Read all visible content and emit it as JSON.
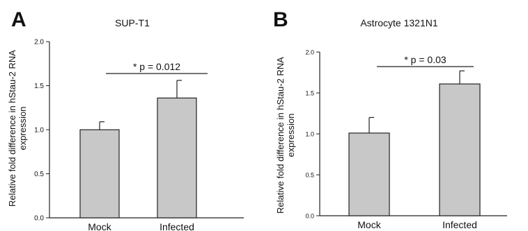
{
  "chart_data": [
    {
      "type": "bar",
      "panel_label": "A",
      "title": "SUP-T1",
      "ylabel_lines": [
        "Relative fold difference in hStau-2 RNA",
        "expression"
      ],
      "categories": [
        "Mock",
        "Infected"
      ],
      "values": [
        1.0,
        1.36
      ],
      "error": [
        0.09,
        0.2
      ],
      "ylim": [
        0.0,
        2.0
      ],
      "yticks": [
        "0.0",
        "0.5",
        "1.0",
        "1.5",
        "2.0"
      ],
      "annotation": "* p  = 0.012",
      "bar_color": "#c8c8c8"
    },
    {
      "type": "bar",
      "panel_label": "B",
      "title": "Astrocyte 1321N1",
      "ylabel_lines": [
        "Relative fold difference in hStau-2 RNA",
        "expression"
      ],
      "categories": [
        "Mock",
        "Infected"
      ],
      "values": [
        1.01,
        1.61
      ],
      "error": [
        0.19,
        0.16
      ],
      "ylim": [
        0.0,
        2.0
      ],
      "yticks": [
        "0.0",
        "0.5",
        "1.0",
        "1.5",
        "2.0"
      ],
      "annotation": "* p  = 0.03",
      "bar_color": "#c8c8c8"
    }
  ]
}
